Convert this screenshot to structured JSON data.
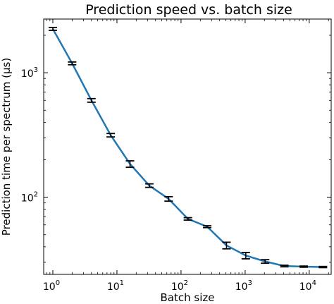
{
  "chart_data": {
    "type": "line",
    "title": "Prediction speed vs. batch size",
    "xlabel": "Batch size",
    "ylabel": "Prediction time per spectrum (μs)",
    "xscale": "log",
    "yscale": "log",
    "xlim": [
      0.72,
      22000
    ],
    "ylim": [
      24,
      2700
    ],
    "grid": false,
    "line_color": "#1f77b4",
    "errorbar_color": "#000000",
    "x_ticks": [
      {
        "value": 1,
        "base": "10",
        "exp": "0"
      },
      {
        "value": 10,
        "base": "10",
        "exp": "1"
      },
      {
        "value": 100,
        "base": "10",
        "exp": "2"
      },
      {
        "value": 1000,
        "base": "10",
        "exp": "3"
      },
      {
        "value": 10000,
        "base": "10",
        "exp": "4"
      }
    ],
    "y_ticks": [
      {
        "value": 100,
        "base": "10",
        "exp": "2"
      },
      {
        "value": 1000,
        "base": "10",
        "exp": "3"
      }
    ],
    "series": [
      {
        "x": [
          1,
          2,
          4,
          8,
          16,
          32,
          64,
          128,
          256,
          512,
          1024,
          2048,
          4096,
          8192,
          16384
        ],
        "y": [
          2250,
          1190,
          600,
          315,
          185,
          124,
          97,
          67,
          58,
          41,
          34,
          30.5,
          28,
          27.7,
          27.5
        ],
        "err": [
          60,
          30,
          20,
          10,
          11,
          4,
          4,
          1.5,
          1,
          2.5,
          2,
          1,
          0.4,
          0.3,
          0.3
        ]
      }
    ]
  }
}
